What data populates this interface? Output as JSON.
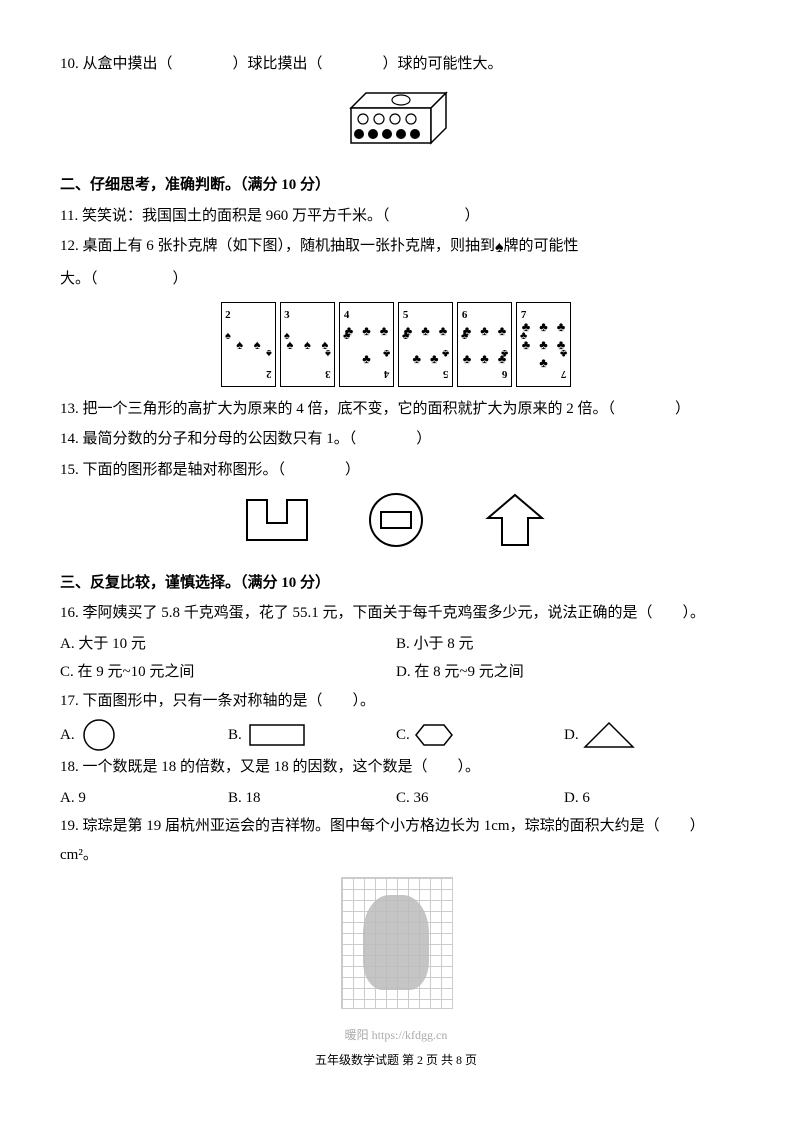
{
  "q10": {
    "text": "10. 从盒中摸出（　　　　）球比摸出（　　　　）球的可能性大。"
  },
  "section2": {
    "title": "二、仔细思考，准确判断。（满分 10 分）"
  },
  "q11": {
    "text": "11. 笑笑说：我国国土的面积是 960 万平方千米。（　　　　　）"
  },
  "q12": {
    "text_a": "12. 桌面上有 6 张扑克牌（如下图），随机抽取一张扑克牌，则抽到",
    "text_b": "牌的可能性",
    "text_c": "大。（　　　　　）",
    "cards": [
      {
        "rank": "2",
        "suit": "♠",
        "count": 2
      },
      {
        "rank": "3",
        "suit": "♠",
        "count": 3
      },
      {
        "rank": "4",
        "suit": "♣",
        "count": 4
      },
      {
        "rank": "5",
        "suit": "♣",
        "count": 5
      },
      {
        "rank": "6",
        "suit": "♣",
        "count": 6
      },
      {
        "rank": "7",
        "suit": "♣",
        "count": 7
      }
    ]
  },
  "q13": {
    "text": "13. 把一个三角形的高扩大为原来的 4 倍，底不变，它的面积就扩大为原来的 2 倍。（　　　　）"
  },
  "q14": {
    "text": "14. 最简分数的分子和分母的公因数只有 1。（　　　　）"
  },
  "q15": {
    "text": "15. 下面的图形都是轴对称图形。（　　　　）"
  },
  "section3": {
    "title": "三、反复比较，谨慎选择。（满分 10 分）"
  },
  "q16": {
    "text": "16. 李阿姨买了 5.8 千克鸡蛋，花了 55.1 元，下面关于每千克鸡蛋多少元，说法正确的是（　　）。",
    "optA": "A. 大于 10 元",
    "optB": "B. 小于 8 元",
    "optC": "C. 在 9 元~10 元之间",
    "optD": "D. 在 8 元~9 元之间"
  },
  "q17": {
    "text": "17. 下面图形中，只有一条对称轴的是（　　）。",
    "labels": {
      "a": "A.",
      "b": "B.",
      "c": "C.",
      "d": "D."
    }
  },
  "q18": {
    "text": "18. 一个数既是 18 的倍数，又是 18 的因数，这个数是（　　）。",
    "optA": "A. 9",
    "optB": "B. 18",
    "optC": "C. 36",
    "optD": "D. 6"
  },
  "q19": {
    "text": "19. 琮琮是第 19 届杭州亚运会的吉祥物。图中每个小方格边长为 1cm，琮琮的面积大约是（　　）cm²。"
  },
  "watermark": "暖阳 https://kfdgg.cn",
  "footer": "五年级数学试题 第 2 页 共 8 页",
  "style": {
    "text_color": "#000000",
    "bg_color": "#ffffff",
    "grid_color": "#cccccc",
    "body_fontsize": 15,
    "stroke_color": "#000000"
  }
}
